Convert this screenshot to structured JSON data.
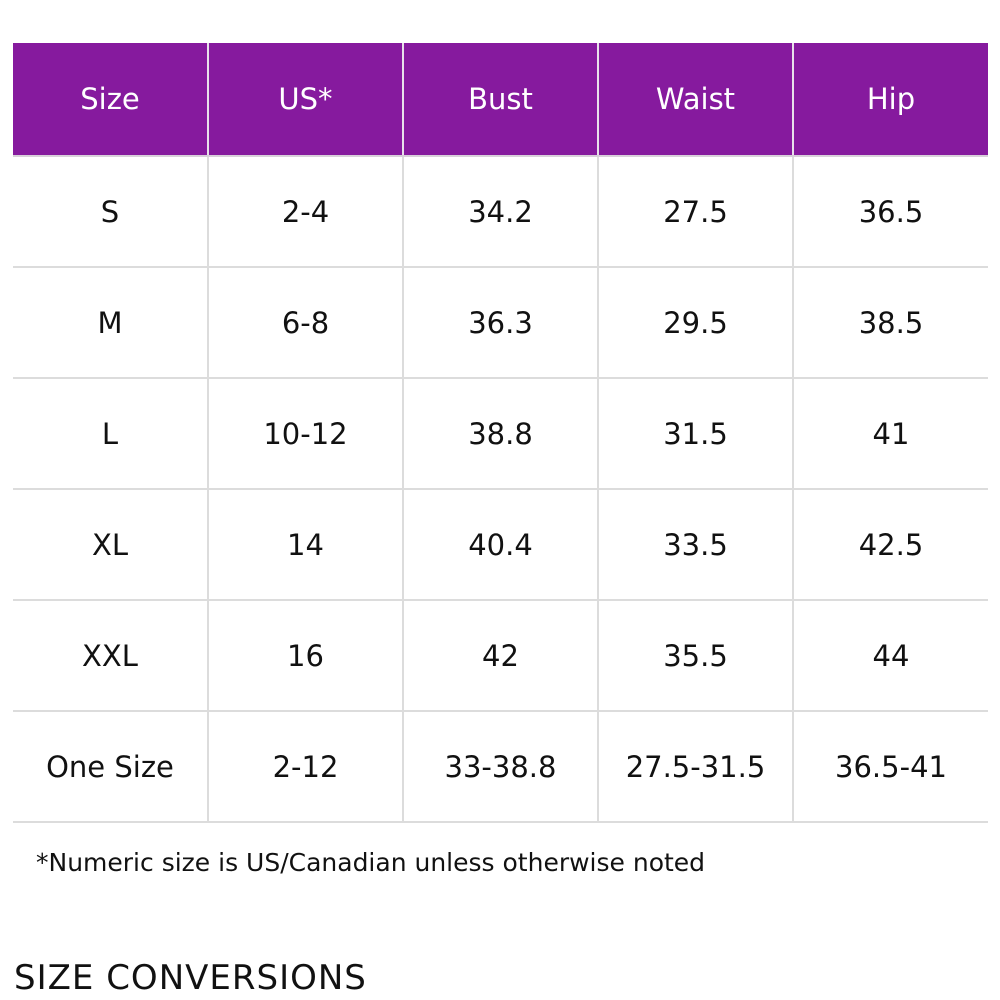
{
  "colors": {
    "header_bg": "#861a9e",
    "header_text": "#ffffff",
    "grid_line": "#dcdcdc"
  },
  "table": {
    "headers": [
      "Size",
      "US*",
      "Bust",
      "Waist",
      "Hip"
    ],
    "rows": [
      [
        "S",
        "2-4",
        "34.2",
        "27.5",
        "36.5"
      ],
      [
        "M",
        "6-8",
        "36.3",
        "29.5",
        "38.5"
      ],
      [
        "L",
        "10-12",
        "38.8",
        "31.5",
        "41"
      ],
      [
        "XL",
        "14",
        "40.4",
        "33.5",
        "42.5"
      ],
      [
        "XXL",
        "16",
        "42",
        "35.5",
        "44"
      ],
      [
        "One Size",
        "2-12",
        "33-38.8",
        "27.5-31.5",
        "36.5-41"
      ]
    ]
  },
  "footnote": "*Numeric size is US/Canadian unless otherwise noted",
  "section_heading": "SIZE CONVERSIONS"
}
